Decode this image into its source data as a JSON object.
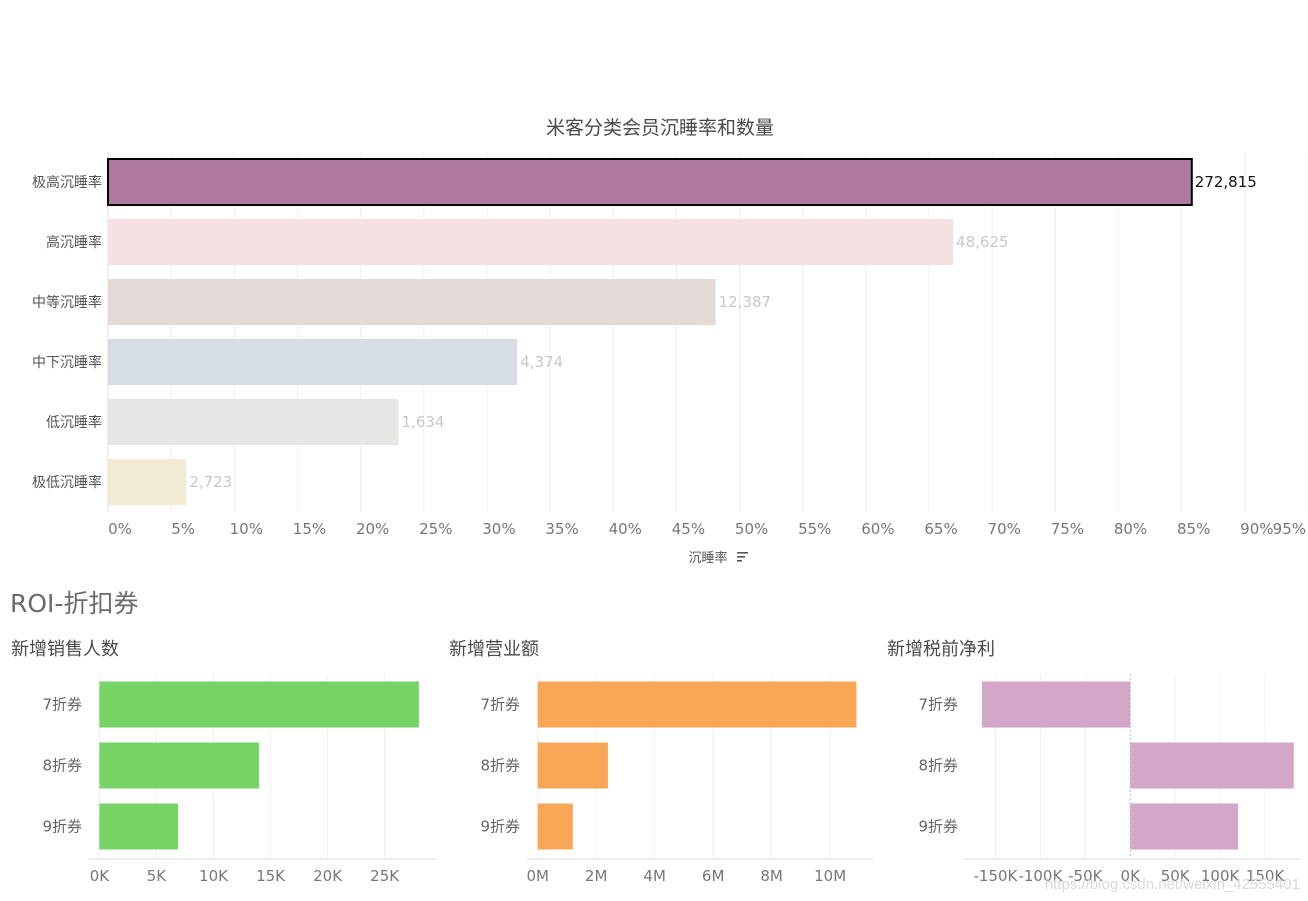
{
  "section_title": "ROI-折扣券",
  "watermark": "https://blog.csdn.net/weixin_42555401",
  "chart_data": [
    {
      "type": "bar",
      "orientation": "horizontal",
      "title": "米客分类会员沉睡率和数量",
      "xlabel": "沉睡率",
      "ylabel": "",
      "xlim": [
        0,
        0.95
      ],
      "x_tick_values": [
        0,
        0.05,
        0.1,
        0.15,
        0.2,
        0.25,
        0.3,
        0.35,
        0.4,
        0.45,
        0.5,
        0.55,
        0.6,
        0.65,
        0.7,
        0.75,
        0.8,
        0.85,
        0.9,
        0.95
      ],
      "x_tick_labels": [
        "0%",
        "5%",
        "10%",
        "15%",
        "20%",
        "25%",
        "30%",
        "35%",
        "40%",
        "45%",
        "50%",
        "55%",
        "60%",
        "65%",
        "70%",
        "75%",
        "80%",
        "85%",
        "90%",
        "95%"
      ],
      "categories": [
        "极高沉睡率",
        "高沉睡率",
        "中等沉睡率",
        "中下沉睡率",
        "低沉睡率",
        "极低沉睡率"
      ],
      "values": [
        0.858,
        0.669,
        0.481,
        0.324,
        0.23,
        0.062
      ],
      "data_labels": [
        "272,815",
        "48,625",
        "12,387",
        "4,374",
        "1,634",
        "2,723"
      ],
      "colors": [
        "#b07aa1",
        "#f5e0e3",
        "#e3dbd8",
        "#d6dde4",
        "#e6e6e4",
        "#f2ead3"
      ],
      "highlighted": "极高沉睡率",
      "grid": true
    },
    {
      "type": "bar",
      "orientation": "horizontal",
      "title": "新增销售人数",
      "categories": [
        "7折券",
        "8折券",
        "9折券"
      ],
      "values": [
        28000,
        14000,
        6900
      ],
      "xlim": [
        -1000,
        29500
      ],
      "x_tick_values": [
        0,
        5000,
        10000,
        15000,
        20000,
        25000
      ],
      "x_tick_labels": [
        "0K",
        "5K",
        "10K",
        "15K",
        "20K",
        "25K"
      ],
      "color": "#76d466",
      "grid": true
    },
    {
      "type": "bar",
      "orientation": "horizontal",
      "title": "新增营业额",
      "categories": [
        "7折券",
        "8折券",
        "9折券"
      ],
      "values": [
        10900000,
        2400000,
        1200000
      ],
      "xlim": [
        -400000,
        11500000
      ],
      "x_tick_values": [
        0,
        2000000,
        4000000,
        6000000,
        8000000,
        10000000
      ],
      "x_tick_labels": [
        "0M",
        "2M",
        "4M",
        "6M",
        "8M",
        "10M"
      ],
      "color": "#f9a656",
      "grid": true
    },
    {
      "type": "bar",
      "orientation": "horizontal",
      "title": "新增税前净利",
      "categories": [
        "7折券",
        "8折券",
        "9折券"
      ],
      "values": [
        -165000,
        182000,
        120000
      ],
      "xlim": [
        -185000,
        190000
      ],
      "x_tick_values": [
        -150000,
        -100000,
        -50000,
        0,
        50000,
        100000,
        150000
      ],
      "x_tick_labels": [
        "-150K",
        "-100K",
        "-50K",
        "0K",
        "50K",
        "100K",
        "150K"
      ],
      "color": "#d4a6c8",
      "grid": true
    }
  ]
}
